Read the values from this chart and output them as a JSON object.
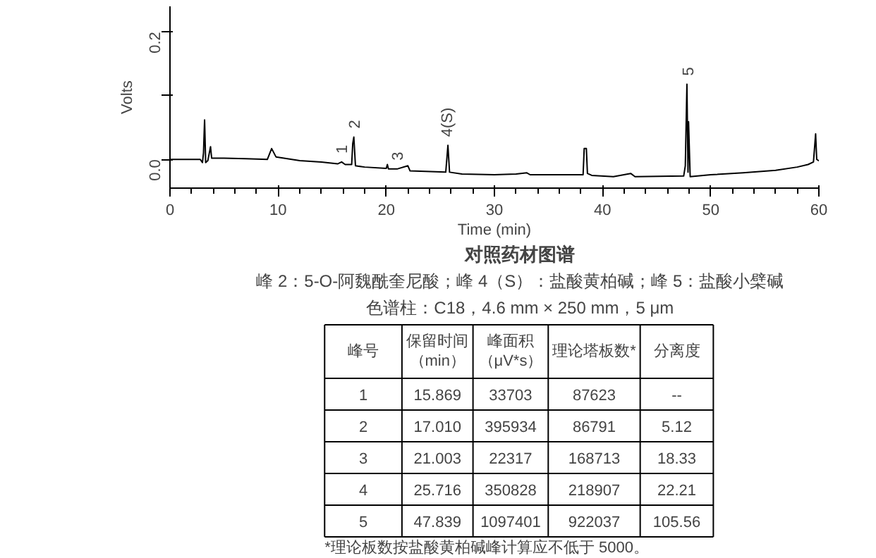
{
  "chart_data": {
    "type": "line",
    "title": "对照药材图谱",
    "subtitle": "峰 2：5-O-阿魏酰奎尼酸；峰 4（S）：盐酸黄柏碱；峰 5：盐酸小檗碱",
    "xlabel": "Time (min)",
    "ylabel": "Volts",
    "xlim": [
      0,
      60
    ],
    "xticks": [
      0,
      10,
      20,
      30,
      40,
      50,
      60
    ],
    "ylim": [
      -0.045,
      0.24
    ],
    "yticks": [
      {
        "value": 0,
        "label": "0.0"
      },
      {
        "value": 0.1,
        "label": null
      },
      {
        "value": 0.2,
        "label": "0.2"
      }
    ],
    "x": [
      0,
      2.8,
      3.0,
      3.1,
      3.2,
      3.3,
      3.5,
      3.75,
      3.85,
      5,
      7,
      9,
      9.4,
      9.8,
      12,
      14,
      15.5,
      15.87,
      16.2,
      16.8,
      16.9,
      17.0,
      17.15,
      18,
      20,
      20.1,
      20.2,
      21,
      22,
      22.2,
      25.5,
      25.7,
      25.85,
      27,
      30,
      32,
      33,
      33.3,
      38.2,
      38.3,
      38.5,
      38.6,
      39,
      41,
      42.6,
      43,
      47.5,
      47.65,
      47.8,
      47.9,
      47.95,
      48.1,
      50,
      53,
      56,
      58,
      59,
      59.5,
      59.7,
      59.8,
      60
    ],
    "series": [
      {
        "color": "#000000",
        "values": [
          0.0,
          0.0,
          -0.005,
          0.01,
          0.062,
          -0.005,
          -0.002,
          0.02,
          0.002,
          0.002,
          0.001,
          0.0,
          0.017,
          0.004,
          -0.002,
          -0.004,
          -0.007,
          -0.004,
          -0.008,
          -0.008,
          0.025,
          0.035,
          -0.01,
          -0.012,
          -0.014,
          -0.008,
          -0.015,
          -0.015,
          -0.01,
          -0.018,
          -0.02,
          0.022,
          -0.02,
          -0.023,
          -0.024,
          -0.023,
          -0.021,
          -0.024,
          -0.024,
          0.017,
          0.017,
          -0.022,
          -0.025,
          -0.027,
          -0.022,
          -0.027,
          -0.026,
          -0.01,
          0.118,
          -0.02,
          0.059,
          -0.027,
          -0.024,
          -0.021,
          -0.017,
          -0.012,
          -0.008,
          -0.004,
          0.04,
          0.0,
          -0.002
        ]
      }
    ],
    "annotations": [
      {
        "text": "1",
        "x": 15.87,
        "y": -0.004
      },
      {
        "text": "2",
        "x": 17.01,
        "y": 0.035
      },
      {
        "text": "3",
        "x": 21.0,
        "y": -0.015
      },
      {
        "text": "4(S)",
        "x": 25.72,
        "y": 0.022
      },
      {
        "text": "5",
        "x": 47.84,
        "y": 0.118
      },
      "色谱柱：C18，4.6 mm × 250 mm，5 μm",
      "峰号",
      "保留时间（min）",
      "峰面积（μV*s）",
      "理论塔板数*",
      "分离度",
      "1",
      "15.869",
      "33703",
      "87623",
      "--",
      "2",
      "17.010",
      "395934",
      "86791",
      "5.12",
      "3",
      "21.003",
      "22317",
      "168713",
      "18.33",
      "4",
      "25.716",
      "350828",
      "218907",
      "22.21",
      "5",
      "47.839",
      "1097401",
      "922037",
      "105.56",
      "*理论板数按盐酸黄柏碱峰计算应不低于 5000。"
    ]
  }
}
